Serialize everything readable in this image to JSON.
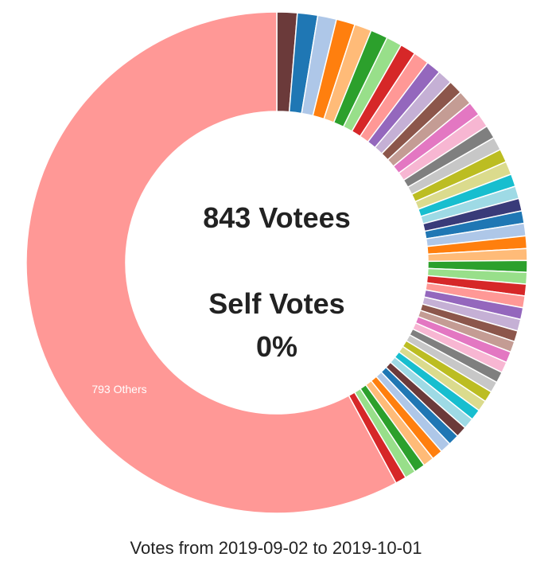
{
  "chart_data": {
    "type": "pie",
    "variant": "donut",
    "start_angle_deg": 0,
    "direction": "clockwise",
    "center_line1": "843 Votees",
    "center_line2": "Self Votes",
    "center_line3": "0%",
    "others_label": "793 Others",
    "caption": "Votes from 2019-09-02 to 2019-10-01",
    "slices": [
      {
        "value": 1.3,
        "color": "#6b3a3a"
      },
      {
        "value": 1.3,
        "color": "#1f77b4"
      },
      {
        "value": 1.2,
        "color": "#aec7e8"
      },
      {
        "value": 1.2,
        "color": "#ff7f0e"
      },
      {
        "value": 1.1,
        "color": "#ffbb78"
      },
      {
        "value": 1.1,
        "color": "#2ca02c"
      },
      {
        "value": 1.0,
        "color": "#98df8a"
      },
      {
        "value": 1.0,
        "color": "#d62728"
      },
      {
        "value": 1.0,
        "color": "#ff9896"
      },
      {
        "value": 0.95,
        "color": "#9467bd"
      },
      {
        "value": 0.95,
        "color": "#c5b0d5"
      },
      {
        "value": 0.9,
        "color": "#8c564b"
      },
      {
        "value": 0.9,
        "color": "#c49c94"
      },
      {
        "value": 0.9,
        "color": "#e377c2"
      },
      {
        "value": 0.9,
        "color": "#f7b6d2"
      },
      {
        "value": 0.85,
        "color": "#7f7f7f"
      },
      {
        "value": 0.85,
        "color": "#c7c7c7"
      },
      {
        "value": 0.85,
        "color": "#bcbd22"
      },
      {
        "value": 0.85,
        "color": "#dbdb8d"
      },
      {
        "value": 0.8,
        "color": "#17becf"
      },
      {
        "value": 0.8,
        "color": "#9edae5"
      },
      {
        "value": 0.8,
        "color": "#393b79"
      },
      {
        "value": 0.8,
        "color": "#1f77b4"
      },
      {
        "value": 0.8,
        "color": "#aec7e8"
      },
      {
        "value": 0.8,
        "color": "#ff7f0e"
      },
      {
        "value": 0.75,
        "color": "#ffbb78"
      },
      {
        "value": 0.75,
        "color": "#2ca02c"
      },
      {
        "value": 0.75,
        "color": "#98df8a"
      },
      {
        "value": 0.75,
        "color": "#d62728"
      },
      {
        "value": 0.75,
        "color": "#ff9896"
      },
      {
        "value": 0.75,
        "color": "#9467bd"
      },
      {
        "value": 0.75,
        "color": "#c5b0d5"
      },
      {
        "value": 0.7,
        "color": "#8c564b"
      },
      {
        "value": 0.7,
        "color": "#c49c94"
      },
      {
        "value": 0.7,
        "color": "#e377c2"
      },
      {
        "value": 0.7,
        "color": "#f7b6d2"
      },
      {
        "value": 0.7,
        "color": "#7f7f7f"
      },
      {
        "value": 0.7,
        "color": "#c7c7c7"
      },
      {
        "value": 0.7,
        "color": "#bcbd22"
      },
      {
        "value": 0.7,
        "color": "#dbdb8d"
      },
      {
        "value": 0.7,
        "color": "#17becf"
      },
      {
        "value": 0.7,
        "color": "#9edae5"
      },
      {
        "value": 0.7,
        "color": "#6b3a3a"
      },
      {
        "value": 0.7,
        "color": "#1f77b4"
      },
      {
        "value": 0.7,
        "color": "#aec7e8"
      },
      {
        "value": 0.7,
        "color": "#ff7f0e"
      },
      {
        "value": 0.7,
        "color": "#ffbb78"
      },
      {
        "value": 0.7,
        "color": "#2ca02c"
      },
      {
        "value": 0.7,
        "color": "#98df8a"
      },
      {
        "value": 0.7,
        "color": "#d62728"
      },
      {
        "value": 57.4,
        "color": "#ff9896",
        "label_key": "others_label"
      }
    ]
  }
}
